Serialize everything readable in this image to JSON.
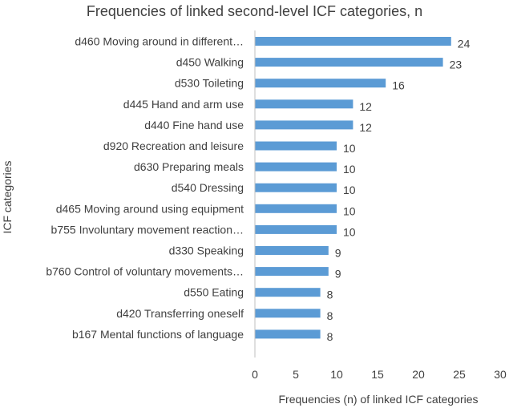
{
  "chart_data": {
    "type": "bar",
    "orientation": "horizontal",
    "title": "Frequencies of linked second-level ICF categories, n",
    "xlabel": "Frequencies (n) of linked ICF categories",
    "ylabel": "ICF categories",
    "xlim": [
      0,
      30
    ],
    "xticks": [
      "0",
      "5",
      "10",
      "15",
      "20",
      "25",
      "30"
    ],
    "grid": false,
    "bar_color": "#5b9bd5",
    "categories": [
      "d460 Moving around in different…",
      "d450 Walking",
      "d530 Toileting",
      "d445 Hand and arm use",
      "d440 Fine hand use",
      "d920 Recreation and leisure",
      "d630 Preparing meals",
      "d540 Dressing",
      "d465 Moving around using equipment",
      "b755 Involuntary movement reaction…",
      "d330 Speaking",
      "b760 Control of voluntary movements…",
      "d550 Eating",
      "d420 Transferring oneself",
      "b167 Mental functions of language"
    ],
    "values": [
      24,
      23,
      16,
      12,
      12,
      10,
      10,
      10,
      10,
      10,
      9,
      9,
      8,
      8,
      8
    ],
    "value_labels": [
      "24",
      "23",
      "16",
      "12",
      "12",
      "10",
      "10",
      "10",
      "10",
      "10",
      "9",
      "9",
      "8",
      "8",
      "8"
    ]
  }
}
